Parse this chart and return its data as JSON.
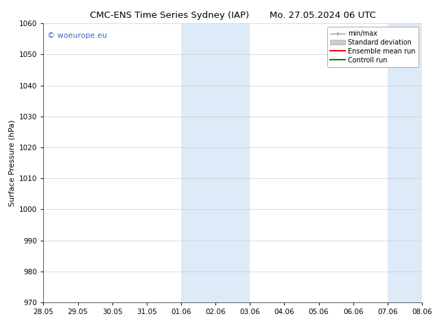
{
  "title_left": "CMC-ENS Time Series Sydney (IAP)",
  "title_right": "Mo. 27.05.2024 06 UTC",
  "ylabel": "Surface Pressure (hPa)",
  "ylim": [
    970,
    1060
  ],
  "yticks": [
    970,
    980,
    990,
    1000,
    1010,
    1020,
    1030,
    1040,
    1050,
    1060
  ],
  "xtick_labels": [
    "28.05",
    "29.05",
    "30.05",
    "31.05",
    "01.06",
    "02.06",
    "03.06",
    "04.06",
    "05.06",
    "06.06",
    "07.06",
    "08.06"
  ],
  "xtick_positions": [
    0,
    1,
    2,
    3,
    4,
    5,
    6,
    7,
    8,
    9,
    10,
    11
  ],
  "shaded_regions": [
    {
      "x_start": 4,
      "x_end": 6,
      "color": "#ddeaf7"
    },
    {
      "x_start": 10,
      "x_end": 11,
      "color": "#ddeaf7"
    }
  ],
  "watermark_text": "© woeurope.eu",
  "watermark_color": "#3366cc",
  "legend_entries": [
    {
      "label": "min/max",
      "color": "#999999",
      "lw": 1.0,
      "style": "minmax"
    },
    {
      "label": "Standard deviation",
      "color": "#cccccc",
      "lw": 8,
      "style": "filled"
    },
    {
      "label": "Ensemble mean run",
      "color": "#ff0000",
      "lw": 1.5,
      "style": "line"
    },
    {
      "label": "Controll run",
      "color": "#008000",
      "lw": 1.5,
      "style": "line"
    }
  ],
  "bg_color": "#ffffff",
  "grid_color": "#cccccc",
  "title_fontsize": 9.5,
  "ylabel_fontsize": 8,
  "tick_fontsize": 7.5,
  "legend_fontsize": 7,
  "watermark_fontsize": 8
}
